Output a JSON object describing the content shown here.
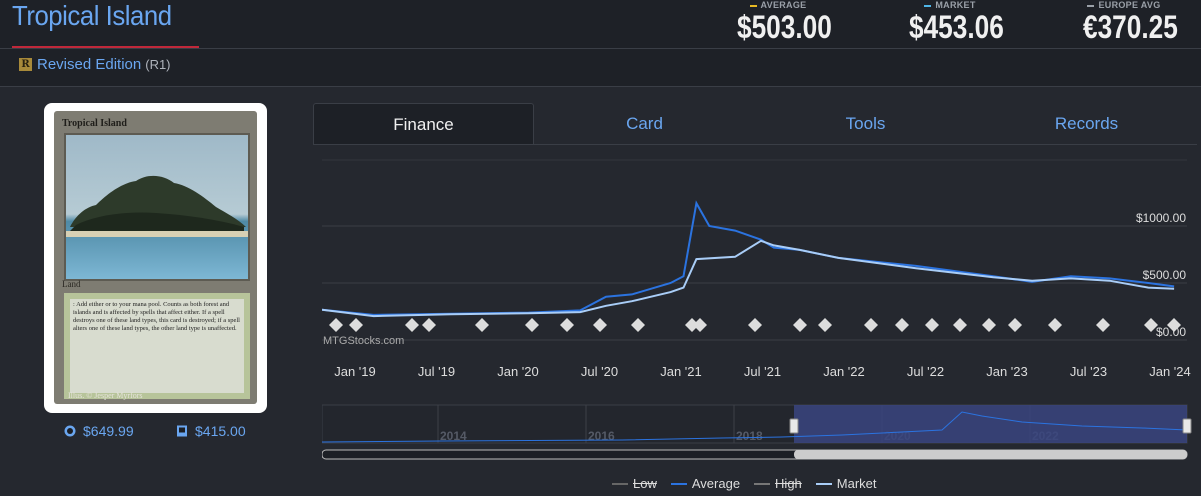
{
  "header": {
    "title": "Tropical Island",
    "set_icon_letter": "R",
    "edition_name": "Revised Edition",
    "edition_code": "(R1)",
    "prices": [
      {
        "label": "AVERAGE",
        "value": "$503.00",
        "color": "#e8b923"
      },
      {
        "label": "MARKET",
        "value": "$453.06",
        "color": "#4fb6e8"
      },
      {
        "label": "EUROPE AVG",
        "value": "€370.25",
        "color": "#9aa0a8"
      }
    ]
  },
  "card": {
    "title": "Tropical Island",
    "type_line": "Land",
    "rules_text": ": Add either  or  to your mana pool. Counts as both forest and islands and is affected by spells that affect either. If a spell destroys one of these land types, this card is destroyed; if a spell alters one of these land types, the other land type is unaffected.",
    "artist": "Illus. © Jesper Myrfors"
  },
  "sub_prices": [
    {
      "icon": "foil-circle-icon",
      "value": "$649.99"
    },
    {
      "icon": "card-box-icon",
      "value": "$415.00"
    }
  ],
  "tabs": [
    {
      "label": "Finance",
      "active": true
    },
    {
      "label": "Card",
      "active": false
    },
    {
      "label": "Tools",
      "active": false
    },
    {
      "label": "Records",
      "active": false
    }
  ],
  "chart_data": {
    "type": "line",
    "watermark": "MTGStocks.com",
    "y_ticks": [
      "$1000.00",
      "$500.00",
      "$0.00"
    ],
    "ylim": [
      0,
      1250
    ],
    "x_ticks": [
      "Jan '19",
      "Jul '19",
      "Jan '20",
      "Jul '20",
      "Jan '21",
      "Jul '21",
      "Jan '22",
      "Jul '22",
      "Jan '23",
      "Jul '23",
      "Jan '24"
    ],
    "navigator_years": [
      "2014",
      "2016",
      "2018",
      "2020",
      "2022"
    ],
    "colors": {
      "low": "#666666",
      "average": "#2b73e0",
      "high": "#555555",
      "market": "#a9cdf7"
    },
    "series": [
      {
        "name": "Average",
        "x": [
          "2018-09",
          "2019-01",
          "2019-07",
          "2020-01",
          "2020-05",
          "2020-07",
          "2020-09",
          "2020-12",
          "2021-01",
          "2021-02",
          "2021-03",
          "2021-05",
          "2021-07",
          "2021-08",
          "2021-10",
          "2022-01",
          "2022-07",
          "2023-01",
          "2023-04",
          "2023-07",
          "2023-10",
          "2024-01",
          "2024-03"
        ],
        "values": [
          265,
          220,
          230,
          240,
          260,
          380,
          400,
          500,
          560,
          1200,
          1000,
          960,
          880,
          810,
          790,
          720,
          650,
          560,
          510,
          560,
          540,
          500,
          470
        ]
      },
      {
        "name": "Market",
        "x": [
          "2018-09",
          "2019-01",
          "2019-07",
          "2020-01",
          "2020-05",
          "2020-07",
          "2020-09",
          "2020-12",
          "2021-01",
          "2021-02",
          "2021-05",
          "2021-07",
          "2021-08",
          "2021-10",
          "2022-01",
          "2022-07",
          "2023-01",
          "2023-04",
          "2023-07",
          "2023-10",
          "2024-01",
          "2024-03"
        ],
        "values": [
          265,
          210,
          225,
          235,
          245,
          300,
          340,
          420,
          460,
          710,
          730,
          870,
          830,
          790,
          720,
          630,
          550,
          520,
          540,
          520,
          460,
          450
        ]
      }
    ],
    "legend": [
      {
        "name": "Low",
        "style": "strike",
        "color": "#666666"
      },
      {
        "name": "Average",
        "style": "normal",
        "color": "#2b73e0"
      },
      {
        "name": "High",
        "style": "strike",
        "color": "#777777"
      },
      {
        "name": "Market",
        "style": "normal",
        "color": "#a9cdf7"
      }
    ]
  },
  "set_symbols": [
    "cmr-icon",
    "2xm-icon",
    "khm-icon",
    "stx-icon",
    "afr-icon",
    "mid-icon",
    "vow-icon",
    "neo-icon",
    "snc-icon",
    "dmu-icon",
    "bro-icon",
    "one-icon",
    "mom-icon",
    "woe-icon",
    "lci-icon",
    "mkm-icon",
    "otj-icon"
  ]
}
